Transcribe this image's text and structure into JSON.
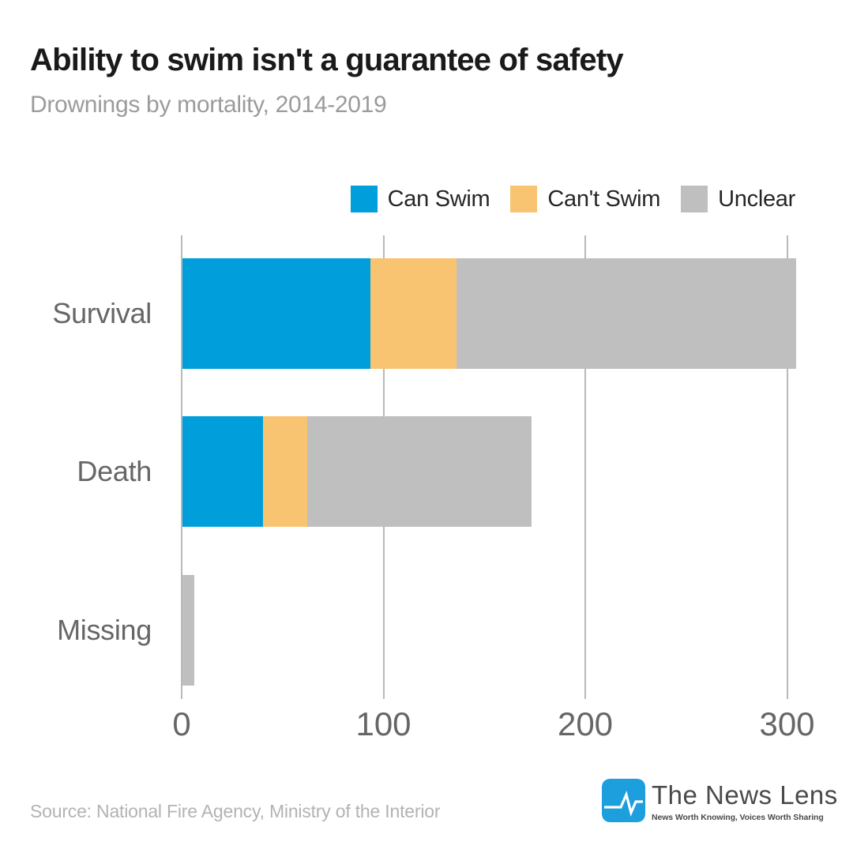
{
  "header": {
    "title": "Ability to swim isn't a guarantee of safety",
    "subtitle": "Drownings by mortality, 2014-2019"
  },
  "chart_data": {
    "type": "bar",
    "orientation": "horizontal",
    "stacked": true,
    "title": "Ability to swim isn't a guarantee of safety",
    "subtitle": "Drownings by mortality, 2014-2019",
    "categories": [
      "Survival",
      "Death",
      "Missing"
    ],
    "series": [
      {
        "name": "Can Swim",
        "color": "#009EDB",
        "values": [
          93,
          40,
          0
        ]
      },
      {
        "name": "Can't Swim",
        "color": "#F9C471",
        "values": [
          43,
          22,
          0
        ]
      },
      {
        "name": "Unclear",
        "color": "#BFBFBF",
        "values": [
          168,
          111,
          6
        ]
      }
    ],
    "totals": [
      304,
      173,
      6
    ],
    "x_ticks": [
      0,
      100,
      200,
      300
    ],
    "xlim": [
      0,
      300
    ],
    "xlabel": "",
    "ylabel": "",
    "grid": true,
    "legend_position": "top-right"
  },
  "footer": {
    "source": "Source: National Fire Agency, Ministry of the Interior",
    "brand": {
      "name": "The News Lens",
      "tagline": "News Worth Knowing, Voices Worth Sharing",
      "logo_color": "#1D9FDD"
    }
  },
  "colors": {
    "can_swim_blue": "#009EDB",
    "cant_swim_orange": "#F9C471",
    "unclear_gray": "#BFBFBF",
    "gridline_gray": "#B9B9B9",
    "axis_text_gray": "#666666",
    "subtitle_gray": "#9B9B9B",
    "source_gray": "#B3B3B3"
  }
}
